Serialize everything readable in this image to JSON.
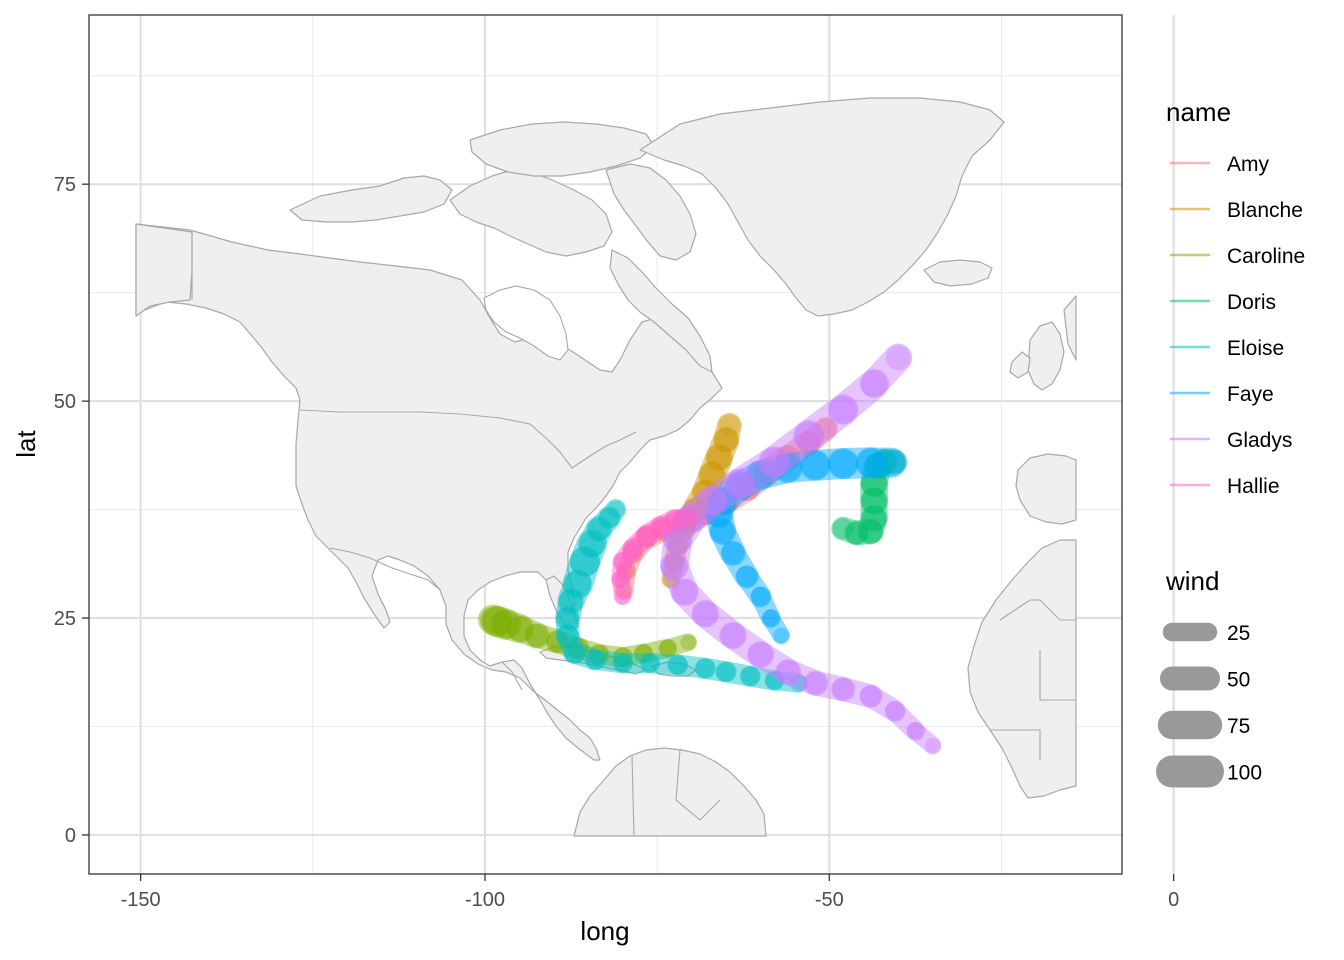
{
  "chart_data": {
    "type": "map-path",
    "xlabel": "long",
    "ylabel": "lat",
    "xlim": [
      -157.5,
      -7.5
    ],
    "ylim": [
      -4.5,
      94.5
    ],
    "x_ticks": [
      -150,
      -100,
      -50,
      0
    ],
    "y_ticks": [
      0,
      25,
      50,
      75
    ],
    "x_tick_labels": [
      "-150",
      "-100",
      "-50",
      "0"
    ],
    "y_tick_labels": [
      "0",
      "25",
      "50",
      "75"
    ],
    "grid": true,
    "legend_position": "right",
    "colour_legend": {
      "title": "name",
      "entries": [
        "Amy",
        "Blanche",
        "Caroline",
        "Doris",
        "Eloise",
        "Faye",
        "Gladys",
        "Hallie"
      ]
    },
    "size_legend": {
      "title": "wind",
      "breaks": [
        25,
        50,
        75,
        100
      ],
      "labels": [
        "25",
        "50",
        "75",
        "100"
      ]
    },
    "series": [
      {
        "name": "Amy",
        "color": "#F8766D",
        "points": [
          [
            -79.8,
            28.2,
            25
          ],
          [
            -79.5,
            30.5,
            30
          ],
          [
            -78.5,
            32.5,
            35
          ],
          [
            -76.5,
            34.3,
            40
          ],
          [
            -74,
            35.2,
            45
          ],
          [
            -71,
            36.2,
            55
          ],
          [
            -68,
            37.2,
            60
          ],
          [
            -65,
            38.5,
            65
          ],
          [
            -62,
            40,
            65
          ],
          [
            -59,
            41.8,
            60
          ],
          [
            -56,
            43.5,
            55
          ],
          [
            -53,
            45.2,
            50
          ],
          [
            -50.5,
            46.8,
            45
          ]
        ]
      },
      {
        "name": "Blanche",
        "color": "#CD9600",
        "points": [
          [
            -73,
            29.5,
            25
          ],
          [
            -72.5,
            31.5,
            30
          ],
          [
            -72,
            33.5,
            35
          ],
          [
            -71,
            35.5,
            45
          ],
          [
            -69.5,
            37.5,
            55
          ],
          [
            -68,
            39.5,
            65
          ],
          [
            -67,
            41.5,
            70
          ],
          [
            -66,
            43.5,
            70
          ],
          [
            -65,
            45.5,
            60
          ],
          [
            -64.5,
            47.2,
            50
          ]
        ]
      },
      {
        "name": "Caroline",
        "color": "#7CAE00",
        "points": [
          [
            -70.5,
            22.2,
            20
          ],
          [
            -73.5,
            21.5,
            25
          ],
          [
            -77,
            20.9,
            30
          ],
          [
            -80,
            20.5,
            30
          ],
          [
            -83.5,
            20.8,
            35
          ],
          [
            -86.5,
            21.5,
            40
          ],
          [
            -89.5,
            22.3,
            45
          ],
          [
            -92.5,
            23,
            55
          ],
          [
            -95,
            23.8,
            70
          ],
          [
            -97,
            24.3,
            90
          ],
          [
            -98.2,
            24.6,
            100
          ],
          [
            -98.8,
            24.8,
            80
          ]
        ]
      },
      {
        "name": "Doris",
        "color": "#00BE67",
        "points": [
          [
            -48,
            35.3,
            45
          ],
          [
            -46,
            34.8,
            50
          ],
          [
            -44,
            35,
            60
          ],
          [
            -43.5,
            36.5,
            65
          ],
          [
            -43.5,
            38.5,
            70
          ],
          [
            -43.5,
            40.5,
            70
          ],
          [
            -43,
            42.5,
            65
          ],
          [
            -42,
            43,
            60
          ],
          [
            -40.5,
            43,
            50
          ]
        ]
      },
      {
        "name": "Eloise",
        "color": "#00BFC4",
        "points": [
          [
            -54.5,
            17.5,
            25
          ],
          [
            -58,
            17.8,
            30
          ],
          [
            -61.5,
            18.3,
            35
          ],
          [
            -65,
            18.8,
            35
          ],
          [
            -68,
            19.2,
            35
          ],
          [
            -72,
            19.6,
            35
          ],
          [
            -76,
            19.8,
            30
          ],
          [
            -80,
            19.8,
            30
          ],
          [
            -84,
            20.2,
            35
          ],
          [
            -87,
            21,
            40
          ],
          [
            -88,
            23,
            45
          ],
          [
            -88,
            25,
            50
          ],
          [
            -87.5,
            27,
            60
          ],
          [
            -86.5,
            29,
            80
          ],
          [
            -85.5,
            31.5,
            100
          ],
          [
            -84.5,
            33.5,
            75
          ],
          [
            -83.5,
            35.2,
            55
          ],
          [
            -82,
            36.5,
            40
          ],
          [
            -81,
            37.5,
            30
          ]
        ]
      },
      {
        "name": "Faye",
        "color": "#00A9FF",
        "points": [
          [
            -57,
            23,
            20
          ],
          [
            -58.5,
            25,
            25
          ],
          [
            -60,
            27.5,
            35
          ],
          [
            -62,
            29.8,
            45
          ],
          [
            -64,
            32.5,
            55
          ],
          [
            -65.5,
            35,
            65
          ],
          [
            -66,
            37,
            70
          ],
          [
            -65.5,
            38.5,
            75
          ],
          [
            -63,
            40.2,
            80
          ],
          [
            -60,
            41.5,
            80
          ],
          [
            -56,
            42.3,
            85
          ],
          [
            -52,
            42.6,
            90
          ],
          [
            -48,
            42.8,
            95
          ],
          [
            -44,
            42.9,
            90
          ],
          [
            -41,
            42.9,
            85
          ]
        ]
      },
      {
        "name": "Gladys",
        "color": "#C77CFF",
        "points": [
          [
            -35,
            10.3,
            20
          ],
          [
            -37.5,
            12,
            25
          ],
          [
            -40.5,
            14.3,
            35
          ],
          [
            -44,
            16,
            45
          ],
          [
            -48,
            16.8,
            50
          ],
          [
            -52,
            17.5,
            55
          ],
          [
            -56,
            18.8,
            60
          ],
          [
            -60,
            20.8,
            65
          ],
          [
            -64,
            23,
            70
          ],
          [
            -68,
            25.5,
            70
          ],
          [
            -71,
            28,
            70
          ],
          [
            -72.5,
            31,
            75
          ],
          [
            -72,
            34,
            80
          ],
          [
            -70,
            36.5,
            85
          ],
          [
            -67,
            38.5,
            85
          ],
          [
            -63,
            40.5,
            90
          ],
          [
            -58,
            43,
            95
          ],
          [
            -53,
            46,
            95
          ],
          [
            -48,
            49,
            90
          ],
          [
            -43.5,
            52,
            80
          ],
          [
            -40,
            55,
            70
          ]
        ]
      },
      {
        "name": "Hallie",
        "color": "#FF61CC",
        "points": [
          [
            -80,
            27.5,
            20
          ],
          [
            -80.3,
            29.5,
            25
          ],
          [
            -80,
            31.5,
            30
          ],
          [
            -78.5,
            33,
            35
          ],
          [
            -76.5,
            34.5,
            40
          ],
          [
            -74.5,
            35.5,
            40
          ],
          [
            -72.5,
            36.3,
            35
          ],
          [
            -70.5,
            36.5,
            30
          ]
        ]
      }
    ]
  }
}
